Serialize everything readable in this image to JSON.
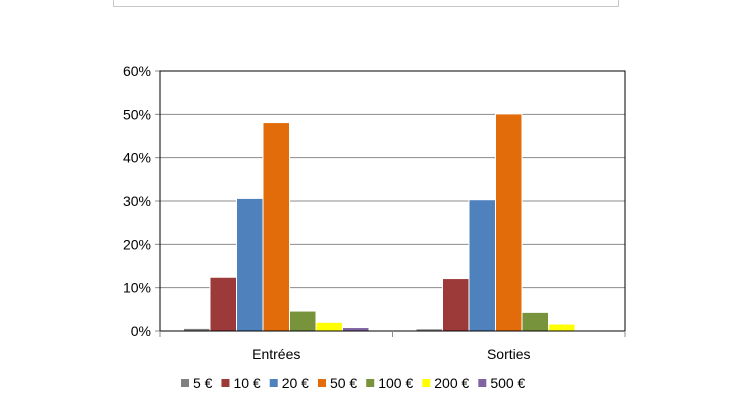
{
  "chart_data": {
    "type": "bar",
    "categories": [
      "Entrées",
      "Sorties"
    ],
    "series": [
      {
        "name": "5 €",
        "color": "#808080",
        "values": [
          0.6,
          0.5
        ]
      },
      {
        "name": "10 €",
        "color": "#9b3a38",
        "values": [
          12.4,
          12.1
        ]
      },
      {
        "name": "20 €",
        "color": "#4f81bd",
        "values": [
          30.6,
          30.3
        ]
      },
      {
        "name": "50 €",
        "color": "#e36c0a",
        "values": [
          48.1,
          50.1
        ]
      },
      {
        "name": "100 €",
        "color": "#77933c",
        "values": [
          4.6,
          4.3
        ]
      },
      {
        "name": "200 €",
        "color": "#ffff00",
        "values": [
          2.0,
          1.6
        ]
      },
      {
        "name": "500 €",
        "color": "#8064a2",
        "values": [
          0.8,
          0.2
        ]
      }
    ],
    "yticks": [
      "0%",
      "10%",
      "20%",
      "30%",
      "40%",
      "50%",
      "60%"
    ],
    "ylim": [
      0,
      60
    ],
    "ylabel": "",
    "xlabel": "",
    "grid": true,
    "legend": "bottom"
  }
}
